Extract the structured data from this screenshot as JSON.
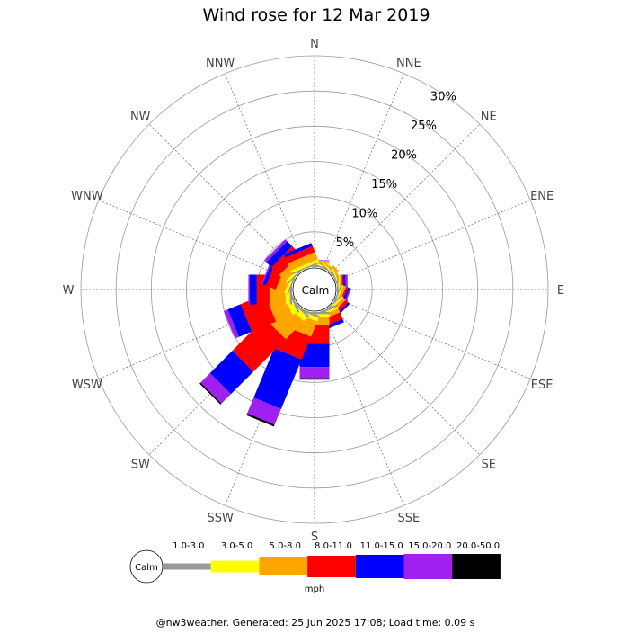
{
  "chart_data": {
    "type": "windrose",
    "title": "Wind rose for 12 Mar 2019",
    "directions": [
      "N",
      "NNE",
      "NE",
      "ENE",
      "E",
      "ESE",
      "SE",
      "SSE",
      "S",
      "SSW",
      "SW",
      "WSW",
      "W",
      "WNW",
      "NW",
      "NNW"
    ],
    "radial_ticks": [
      5,
      10,
      15,
      20,
      25,
      30
    ],
    "radial_unit": "%",
    "rmax": 30,
    "calm_label": "Calm",
    "units_label": "mph",
    "speed_bins": [
      {
        "name": "1.0-3.0",
        "color": "#999999"
      },
      {
        "name": "3.0-5.0",
        "color": "#ffff00"
      },
      {
        "name": "5.0-8.0",
        "color": "#ffa500"
      },
      {
        "name": "8.0-11.0",
        "color": "#ff0000"
      },
      {
        "name": "11.0-15.0",
        "color": "#0000ff"
      },
      {
        "name": "15.0-20.0",
        "color": "#a020f0"
      },
      {
        "name": "20.0-50.0",
        "color": "#000000"
      }
    ],
    "calm_percent": 1.5,
    "series": [
      {
        "dir": "N",
        "values": [
          0.2,
          0.3,
          0.4,
          0.0,
          0.0,
          0.1,
          0.0
        ]
      },
      {
        "dir": "NNE",
        "values": [
          0.2,
          0.2,
          0.3,
          0.0,
          0.0,
          0.0,
          0.0
        ]
      },
      {
        "dir": "NE",
        "values": [
          0.2,
          0.2,
          0.2,
          0.0,
          0.0,
          0.0,
          0.0
        ]
      },
      {
        "dir": "ENE",
        "values": [
          0.2,
          0.2,
          0.3,
          0.0,
          0.0,
          0.0,
          0.0
        ]
      },
      {
        "dir": "E",
        "values": [
          0.2,
          0.2,
          0.3,
          0.2,
          0.3,
          0.3,
          0.0
        ]
      },
      {
        "dir": "ESE",
        "values": [
          0.2,
          0.2,
          0.4,
          0.3,
          0.3,
          0.2,
          0.0
        ]
      },
      {
        "dir": "SE",
        "values": [
          0.2,
          0.3,
          0.5,
          0.5,
          0.3,
          0.0,
          0.0
        ]
      },
      {
        "dir": "SSE",
        "values": [
          0.3,
          0.3,
          0.6,
          1.0,
          0.5,
          0.0,
          0.0
        ]
      },
      {
        "dir": "S",
        "values": [
          0.3,
          0.5,
          1.1,
          2.6,
          3.3,
          1.6,
          0.2
        ]
      },
      {
        "dir": "SSW",
        "values": [
          0.3,
          0.6,
          2.3,
          3.5,
          7.6,
          2.4,
          0.3
        ]
      },
      {
        "dir": "SW",
        "values": [
          0.3,
          0.8,
          3.6,
          6.5,
          4.5,
          1.9,
          0.2
        ]
      },
      {
        "dir": "WSW",
        "values": [
          0.3,
          0.8,
          2.5,
          3.7,
          2.0,
          0.6,
          0.0
        ]
      },
      {
        "dir": "W",
        "values": [
          0.3,
          0.6,
          2.3,
          1.8,
          1.0,
          0.2,
          0.0
        ]
      },
      {
        "dir": "WNW",
        "values": [
          0.2,
          0.4,
          1.3,
          1.5,
          0.5,
          0.2,
          0.0
        ]
      },
      {
        "dir": "NW",
        "values": [
          0.2,
          0.4,
          1.2,
          1.6,
          1.0,
          0.4,
          0.0
        ]
      },
      {
        "dir": "NNW",
        "values": [
          0.2,
          0.4,
          1.1,
          0.9,
          0.5,
          0.0,
          0.0
        ]
      }
    ]
  },
  "footer": "@nw3weather. Generated: 25 Jun 2025 17:08; Load time: 0.09 s"
}
